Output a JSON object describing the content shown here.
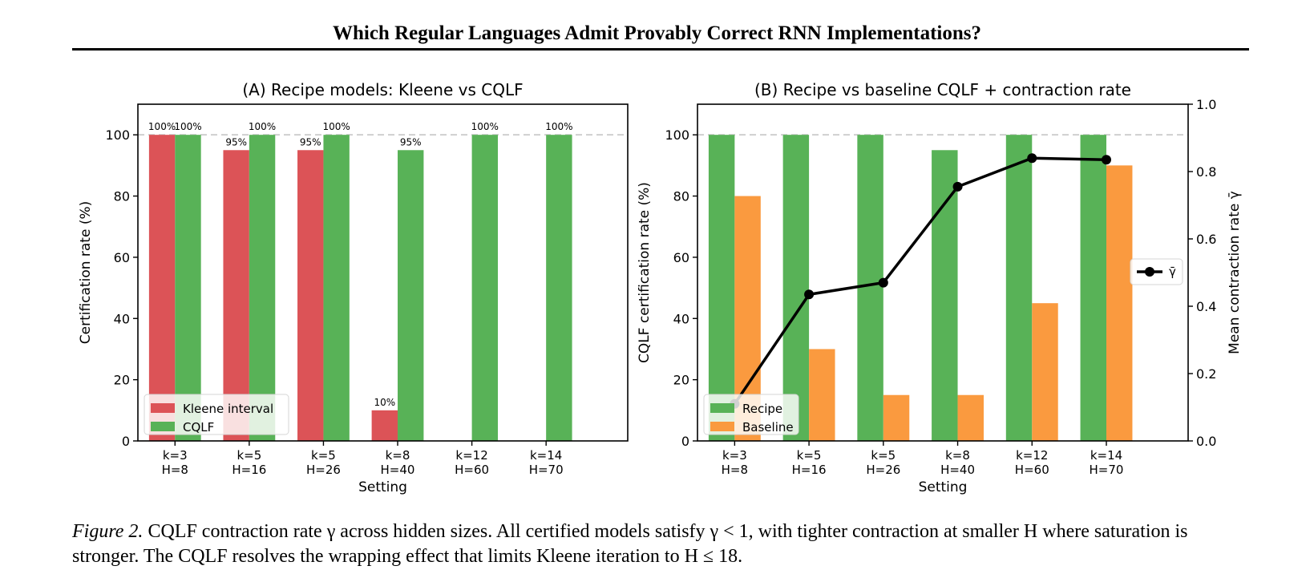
{
  "header": {
    "title": "Which Regular Languages Admit Provably Correct RNN Implementations?"
  },
  "caption": {
    "label": "Figure 2.",
    "text": "CQLF contraction rate γ across hidden sizes. All certified models satisfy γ < 1, with tighter contraction at smaller H where saturation is stronger. The CQLF resolves the wrapping effect that limits Kleene iteration to H ≤ 18."
  },
  "chart_data": [
    {
      "type": "bar",
      "title": "(A) Recipe models: Kleene vs CQLF",
      "xlabel": "Setting",
      "ylabel": "Certification rate (%)",
      "categories": [
        [
          "k=3",
          "H=8"
        ],
        [
          "k=5",
          "H=16"
        ],
        [
          "k=5",
          "H=26"
        ],
        [
          "k=8",
          "H=40"
        ],
        [
          "k=12",
          "H=60"
        ],
        [
          "k=14",
          "H=70"
        ]
      ],
      "ylim": [
        0,
        110
      ],
      "yticks": [
        0,
        20,
        40,
        60,
        80,
        100
      ],
      "reference_line": 100,
      "legend_position": "lower-left",
      "series": [
        {
          "name": "Kleene interval",
          "color": "#dc5357",
          "values": [
            100,
            95,
            95,
            10,
            0,
            0
          ],
          "labels": [
            "100%",
            "95%",
            "95%",
            "10%",
            "",
            ""
          ]
        },
        {
          "name": "CQLF",
          "color": "#58b257",
          "values": [
            100,
            100,
            100,
            95,
            100,
            100
          ],
          "labels": [
            "100%",
            "100%",
            "100%",
            "95%",
            "100%",
            "100%"
          ]
        }
      ]
    },
    {
      "type": "bar",
      "title": "(B) Recipe vs baseline CQLF + contraction rate",
      "xlabel": "Setting",
      "ylabel": "CQLF certification rate (%)",
      "y2label": "Mean contraction rate γ̄",
      "categories": [
        [
          "k=3",
          "H=8"
        ],
        [
          "k=5",
          "H=16"
        ],
        [
          "k=5",
          "H=26"
        ],
        [
          "k=8",
          "H=40"
        ],
        [
          "k=12",
          "H=60"
        ],
        [
          "k=14",
          "H=70"
        ]
      ],
      "ylim": [
        0,
        110
      ],
      "yticks": [
        0,
        20,
        40,
        60,
        80,
        100
      ],
      "y2lim": [
        0,
        1.0
      ],
      "y2ticks": [
        "0.0",
        "0.2",
        "0.4",
        "0.6",
        "0.8",
        "1.0"
      ],
      "reference_line": 100,
      "legend_position": "lower-left",
      "line_legend_position": "center-right",
      "series": [
        {
          "name": "Recipe",
          "color": "#58b257",
          "values": [
            100,
            100,
            100,
            95,
            100,
            100
          ]
        },
        {
          "name": "Baseline",
          "color": "#fa9a3f",
          "values": [
            80,
            30,
            15,
            15,
            45,
            90
          ]
        }
      ],
      "line_series": {
        "name": "γ̄",
        "color": "#000000",
        "values": [
          0.11,
          0.435,
          0.47,
          0.755,
          0.84,
          0.835
        ]
      }
    }
  ]
}
